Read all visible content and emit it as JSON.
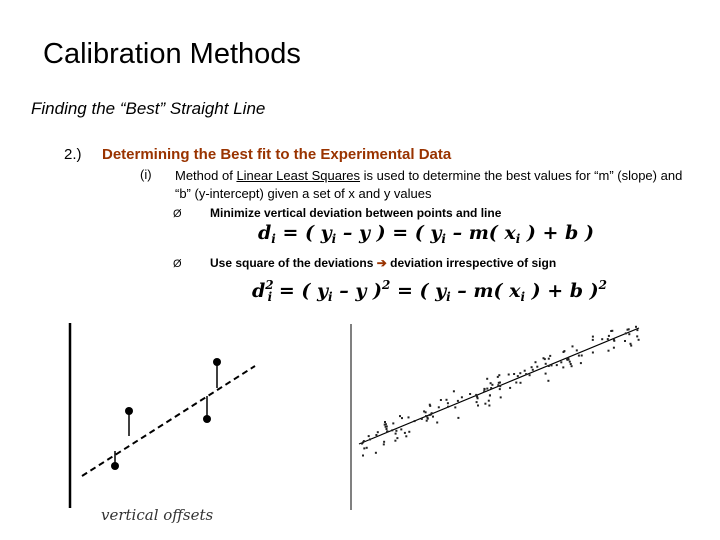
{
  "slide": {
    "title": "Calibration Methods",
    "subtitle": "Finding the “Best” Straight Line",
    "point_number": "2.)",
    "point_heading": "Determining the Best fit to the Experimental Data",
    "sub_number": "(i)",
    "method_prefix": "Method of ",
    "method_link": "Linear Least Squares",
    "method_suffix": " is used to determine the best values for “m” (slope) and “b” (y-intercept) given a set of x and y values",
    "bullets": [
      {
        "mark": "Ø",
        "text": "Minimize vertical deviation between points and line"
      },
      {
        "mark": "Ø",
        "text_before": "Use square of the deviations ",
        "arrow": "➔",
        "text_after": " deviation irrespective of sign"
      }
    ],
    "equation1": {
      "d": "d",
      "i": "i",
      "part1": "= ( y",
      "part2": " – y ) = ( y",
      "part3": " – m( x",
      "part4": " ) + b )"
    },
    "equation2": {
      "d": "d",
      "i": "i",
      "sq": "2",
      "part1": "= ( y",
      "part2": " – y )",
      "part3": " = ( y",
      "part4": " – m( x",
      "part5": " ) + b )"
    },
    "figure_caption": "vertical offsets"
  },
  "colors": {
    "heading_accent": "#993300"
  }
}
